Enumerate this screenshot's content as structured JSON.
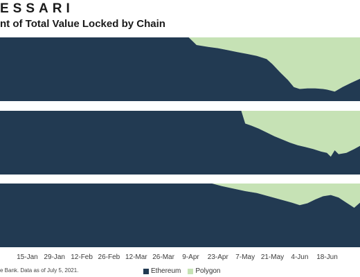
{
  "header": {
    "brand": "ESSARI",
    "title": "nt of Total Value Locked by Chain"
  },
  "footnote": "e Bank. Data as of July 5, 2021.",
  "colors": {
    "ethereum": "#223a52",
    "polygon": "#c6e2b5"
  },
  "chart_data": {
    "type": "area",
    "stacked": true,
    "normalized": true,
    "title": "nt of Total Value Locked by Chain",
    "x_tick_labels": [
      "15-Jan",
      "29-Jan",
      "12-Feb",
      "26-Feb",
      "12-Mar",
      "26-Mar",
      "9-Apr",
      "23-Apr",
      "7-May",
      "21-May",
      "4-Jun",
      "18-Jun"
    ],
    "ylim": [
      0,
      100
    ],
    "legend": {
      "placement": "bottom",
      "entries": [
        "Ethereum",
        "Polygon"
      ]
    },
    "panels": [
      {
        "series": [
          {
            "name": "Ethereum",
            "x": [
              "2021-01-01",
              "2021-04-08",
              "2021-04-12",
              "2021-04-18",
              "2021-04-23",
              "2021-04-28",
              "2021-05-03",
              "2021-05-08",
              "2021-05-13",
              "2021-05-18",
              "2021-05-21",
              "2021-05-25",
              "2021-05-29",
              "2021-06-01",
              "2021-06-04",
              "2021-06-08",
              "2021-06-12",
              "2021-06-16",
              "2021-06-18",
              "2021-06-22",
              "2021-06-26",
              "2021-06-30",
              "2021-07-05"
            ],
            "values": [
              100,
              100,
              88,
              85,
              83,
              80,
              77,
              74,
              71,
              66,
              58,
              45,
              33,
              22,
              19,
              20,
              20,
              19,
              18,
              15,
              22,
              28,
              35
            ]
          },
          {
            "name": "Polygon",
            "x": [
              "2021-01-01",
              "2021-04-08",
              "2021-04-12",
              "2021-04-18",
              "2021-04-23",
              "2021-04-28",
              "2021-05-03",
              "2021-05-08",
              "2021-05-13",
              "2021-05-18",
              "2021-05-21",
              "2021-05-25",
              "2021-05-29",
              "2021-06-01",
              "2021-06-04",
              "2021-06-08",
              "2021-06-12",
              "2021-06-16",
              "2021-06-18",
              "2021-06-22",
              "2021-06-26",
              "2021-06-30",
              "2021-07-05"
            ],
            "values": [
              0,
              0,
              12,
              15,
              17,
              20,
              23,
              26,
              29,
              34,
              42,
              55,
              67,
              78,
              81,
              80,
              80,
              81,
              82,
              85,
              78,
              72,
              65
            ]
          }
        ]
      },
      {
        "series": [
          {
            "name": "Ethereum",
            "x": [
              "2021-01-01",
              "2021-05-05",
              "2021-05-07",
              "2021-05-10",
              "2021-05-14",
              "2021-05-18",
              "2021-05-22",
              "2021-05-26",
              "2021-05-30",
              "2021-06-03",
              "2021-06-07",
              "2021-06-11",
              "2021-06-15",
              "2021-06-18",
              "2021-06-20",
              "2021-06-22",
              "2021-06-24",
              "2021-06-28",
              "2021-07-02",
              "2021-07-05"
            ],
            "values": [
              100,
              100,
              80,
              77,
              72,
              66,
              60,
              55,
              50,
              46,
              43,
              40,
              36,
              34,
              28,
              38,
              32,
              34,
              40,
              45
            ]
          },
          {
            "name": "Polygon",
            "x": [
              "2021-01-01",
              "2021-05-05",
              "2021-05-07",
              "2021-05-10",
              "2021-05-14",
              "2021-05-18",
              "2021-05-22",
              "2021-05-26",
              "2021-05-30",
              "2021-06-03",
              "2021-06-07",
              "2021-06-11",
              "2021-06-15",
              "2021-06-18",
              "2021-06-20",
              "2021-06-22",
              "2021-06-24",
              "2021-06-28",
              "2021-07-02",
              "2021-07-05"
            ],
            "values": [
              0,
              0,
              20,
              23,
              28,
              34,
              40,
              45,
              50,
              54,
              57,
              60,
              64,
              66,
              72,
              62,
              68,
              66,
              60,
              55
            ]
          }
        ]
      },
      {
        "series": [
          {
            "name": "Ethereum",
            "x": [
              "2021-01-01",
              "2021-04-20",
              "2021-04-25",
              "2021-05-01",
              "2021-05-07",
              "2021-05-13",
              "2021-05-19",
              "2021-05-25",
              "2021-05-31",
              "2021-06-04",
              "2021-06-08",
              "2021-06-12",
              "2021-06-16",
              "2021-06-20",
              "2021-06-24",
              "2021-06-28",
              "2021-07-02",
              "2021-07-05"
            ],
            "values": [
              100,
              100,
              96,
              92,
              88,
              85,
              80,
              75,
              70,
              66,
              69,
              75,
              80,
              82,
              78,
              70,
              62,
              70
            ]
          },
          {
            "name": "Polygon",
            "x": [
              "2021-01-01",
              "2021-04-20",
              "2021-04-25",
              "2021-05-01",
              "2021-05-07",
              "2021-05-13",
              "2021-05-19",
              "2021-05-25",
              "2021-05-31",
              "2021-06-04",
              "2021-06-08",
              "2021-06-12",
              "2021-06-16",
              "2021-06-20",
              "2021-06-24",
              "2021-06-28",
              "2021-07-02",
              "2021-07-05"
            ],
            "values": [
              0,
              0,
              4,
              8,
              12,
              15,
              20,
              25,
              30,
              34,
              31,
              25,
              20,
              18,
              22,
              30,
              38,
              30
            ]
          }
        ]
      }
    ]
  }
}
